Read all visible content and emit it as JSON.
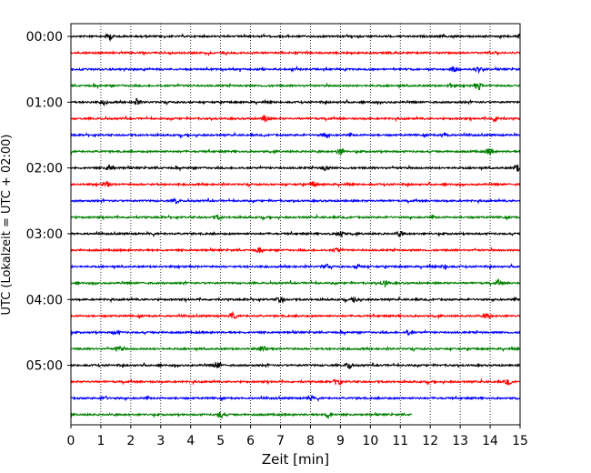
{
  "chart_data": {
    "type": "line",
    "subtype": "helicorder-seismogram",
    "title": "",
    "xlabel": "Zeit  [min]",
    "ylabel": "UTC (Lokalzeit = UTC + 02:00)",
    "xlim": [
      0,
      15
    ],
    "x_ticks": [
      "0",
      "1",
      "2",
      "3",
      "4",
      "5",
      "6",
      "7",
      "8",
      "9",
      "10",
      "11",
      "12",
      "13",
      "14",
      "15"
    ],
    "y_tick_labels": [
      "00:00",
      "01:00",
      "02:00",
      "03:00",
      "04:00",
      "05:00"
    ],
    "y_tick_trace_index": [
      0,
      4,
      8,
      12,
      16,
      20
    ],
    "grid": "vertical dotted at each minute",
    "color_cycle": [
      "#000000",
      "#ff0000",
      "#0000ff",
      "#008000"
    ],
    "traces": [
      {
        "start": "00:00",
        "color": "#000000",
        "end_min": 15,
        "bursts": [
          [
            1.3,
            3.5
          ],
          [
            15,
            3.2
          ]
        ]
      },
      {
        "start": "00:15",
        "color": "#ff0000",
        "end_min": 15,
        "bursts": []
      },
      {
        "start": "00:30",
        "color": "#0000ff",
        "end_min": 15,
        "bursts": [
          [
            12.8,
            3.5
          ],
          [
            13.6,
            2.8
          ]
        ]
      },
      {
        "start": "00:45",
        "color": "#008000",
        "end_min": 15,
        "bursts": [
          [
            12.7,
            3.0
          ],
          [
            13.6,
            4.5
          ]
        ]
      },
      {
        "start": "01:00",
        "color": "#000000",
        "end_min": 15,
        "bursts": [
          [
            2.2,
            4.0
          ],
          [
            1.1,
            2.5
          ]
        ]
      },
      {
        "start": "01:15",
        "color": "#ff0000",
        "end_min": 15,
        "bursts": [
          [
            6.5,
            3.8
          ],
          [
            14.2,
            4.0
          ]
        ]
      },
      {
        "start": "01:30",
        "color": "#0000ff",
        "end_min": 15,
        "bursts": [
          [
            8.5,
            3.0
          ],
          [
            12.5,
            3.0
          ]
        ]
      },
      {
        "start": "01:45",
        "color": "#008000",
        "end_min": 15,
        "bursts": [
          [
            9.0,
            4.0
          ],
          [
            14.0,
            4.0
          ]
        ]
      },
      {
        "start": "02:00",
        "color": "#000000",
        "end_min": 15,
        "bursts": [
          [
            1.3,
            4.0
          ],
          [
            8.5,
            3.5
          ],
          [
            14.9,
            3.8
          ]
        ]
      },
      {
        "start": "02:15",
        "color": "#ff0000",
        "end_min": 15,
        "bursts": [
          [
            1.2,
            3.0
          ],
          [
            8.1,
            3.0
          ]
        ]
      },
      {
        "start": "02:30",
        "color": "#0000ff",
        "end_min": 15,
        "bursts": [
          [
            3.5,
            2.5
          ]
        ]
      },
      {
        "start": "02:45",
        "color": "#008000",
        "end_min": 15,
        "bursts": [
          [
            4.9,
            2.5
          ]
        ]
      },
      {
        "start": "03:00",
        "color": "#000000",
        "end_min": 15,
        "bursts": [
          [
            9.0,
            4.0
          ],
          [
            11.0,
            3.0
          ]
        ]
      },
      {
        "start": "03:15",
        "color": "#ff0000",
        "end_min": 15,
        "bursts": [
          [
            6.3,
            3.0
          ],
          [
            8.9,
            2.8
          ]
        ]
      },
      {
        "start": "03:30",
        "color": "#0000ff",
        "end_min": 15,
        "bursts": [
          [
            8.5,
            3.0
          ],
          [
            9.6,
            3.0
          ],
          [
            12.5,
            2.6
          ]
        ]
      },
      {
        "start": "03:45",
        "color": "#008000",
        "end_min": 15,
        "bursts": [
          [
            10.5,
            3.0
          ],
          [
            14.3,
            3.0
          ]
        ]
      },
      {
        "start": "04:00",
        "color": "#000000",
        "end_min": 15,
        "bursts": [
          [
            7.0,
            3.5
          ],
          [
            9.5,
            3.5
          ]
        ]
      },
      {
        "start": "04:15",
        "color": "#ff0000",
        "end_min": 15,
        "bursts": [
          [
            5.4,
            3.0
          ],
          [
            13.9,
            3.5
          ]
        ]
      },
      {
        "start": "04:30",
        "color": "#0000ff",
        "end_min": 15,
        "bursts": [
          [
            1.5,
            2.5
          ],
          [
            11.3,
            2.8
          ]
        ]
      },
      {
        "start": "04:45",
        "color": "#008000",
        "end_min": 15,
        "bursts": [
          [
            1.6,
            3.0
          ],
          [
            6.4,
            3.0
          ]
        ]
      },
      {
        "start": "05:00",
        "color": "#000000",
        "end_min": 15,
        "bursts": [
          [
            4.9,
            4.0
          ],
          [
            9.3,
            3.5
          ]
        ]
      },
      {
        "start": "05:15",
        "color": "#ff0000",
        "end_min": 15,
        "bursts": [
          [
            8.9,
            4.5
          ],
          [
            14.6,
            3.0
          ]
        ]
      },
      {
        "start": "05:30",
        "color": "#0000ff",
        "end_min": 15,
        "bursts": [
          [
            1.1,
            2.5
          ],
          [
            8.0,
            2.5
          ]
        ]
      },
      {
        "start": "05:45",
        "color": "#008000",
        "end_min": 11.4,
        "bursts": [
          [
            5.0,
            3.0
          ],
          [
            8.6,
            4.5
          ]
        ]
      }
    ]
  }
}
